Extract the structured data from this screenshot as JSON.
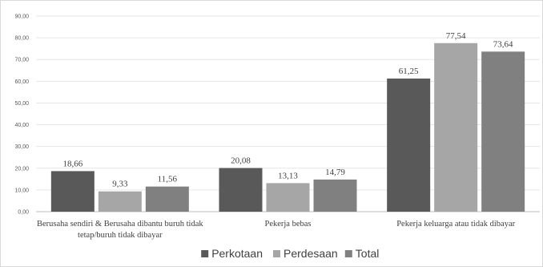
{
  "chart_data": {
    "type": "bar",
    "title": "",
    "xlabel": "",
    "ylabel": "",
    "ylim": [
      0,
      90
    ],
    "y_ticks": [
      "0,00",
      "10,00",
      "20,00",
      "30,00",
      "40,00",
      "50,00",
      "60,00",
      "70,00",
      "80,00",
      "90,00"
    ],
    "grid": true,
    "legend_position": "bottom",
    "categories": [
      [
        "Berusaha sendiri & Berusaha dibantu buruh tidak",
        "tetap/buruh tidak dibayar"
      ],
      [
        "Pekerja bebas"
      ],
      [
        "Pekerja keluarga atau tidak dibayar"
      ]
    ],
    "series": [
      {
        "name": "Perkotaan",
        "color": "#595959",
        "values": [
          18.66,
          20.08,
          61.25
        ],
        "labels": [
          "18,66",
          "20,08",
          "61,25"
        ]
      },
      {
        "name": "Perdesaan",
        "color": "#a6a6a6",
        "values": [
          9.33,
          13.13,
          77.54
        ],
        "labels": [
          "9,33",
          "13,13",
          "77,54"
        ]
      },
      {
        "name": "Total",
        "color": "#808080",
        "values": [
          11.56,
          14.79,
          73.64
        ],
        "labels": [
          "11,56",
          "14,79",
          "73,64"
        ]
      }
    ]
  }
}
